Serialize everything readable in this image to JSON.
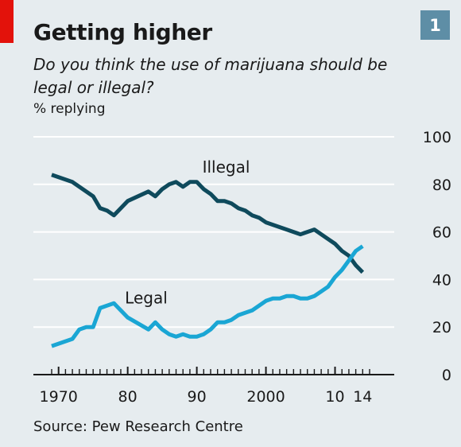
{
  "header": {
    "title": "Getting higher",
    "subtitle": "Do you think the use of marijuana should be legal or illegal?",
    "unit": "% replying",
    "badge": "1"
  },
  "footer": {
    "source": "Source: Pew Research Centre"
  },
  "colors": {
    "illegal": "#0f4a5c",
    "legal": "#1aa6d4",
    "grid": "#ffffff",
    "badge": "#5e8ea6",
    "accent": "#e3120b",
    "background": "#e6ecef"
  },
  "chart_data": {
    "type": "line",
    "title": "Getting higher",
    "subtitle": "Do you think the use of marijuana should be legal or illegal?",
    "ylabel": "% replying",
    "xlim": [
      1969,
      2015
    ],
    "ylim": [
      0,
      100
    ],
    "y_ticks": [
      0,
      20,
      40,
      60,
      80,
      100
    ],
    "x_tick_labels": [
      {
        "x": 1970,
        "label": "1970"
      },
      {
        "x": 1980,
        "label": "80"
      },
      {
        "x": 1990,
        "label": "90"
      },
      {
        "x": 2000,
        "label": "2000"
      },
      {
        "x": 2010,
        "label": "10"
      },
      {
        "x": 2014,
        "label": "14"
      }
    ],
    "grid": true,
    "y_axis_side": "right",
    "series": [
      {
        "name": "Illegal",
        "x": [
          1969,
          1970,
          1972,
          1973,
          1974,
          1975,
          1976,
          1977,
          1978,
          1979,
          1980,
          1983,
          1984,
          1985,
          1986,
          1987,
          1988,
          1989,
          1990,
          1991,
          1992,
          1993,
          1994,
          1995,
          1996,
          1997,
          1998,
          1999,
          2000,
          2001,
          2002,
          2003,
          2004,
          2005,
          2006,
          2007,
          2008,
          2009,
          2010,
          2011,
          2012,
          2013,
          2014
        ],
        "values": [
          84,
          83,
          81,
          79,
          77,
          75,
          70,
          69,
          67,
          70,
          73,
          77,
          75,
          78,
          80,
          81,
          79,
          81,
          81,
          78,
          76,
          73,
          73,
          72,
          70,
          69,
          67,
          66,
          64,
          63,
          62,
          61,
          60,
          59,
          60,
          61,
          59,
          57,
          55,
          52,
          50,
          46,
          43
        ]
      },
      {
        "name": "Legal",
        "x": [
          1969,
          1970,
          1972,
          1973,
          1974,
          1975,
          1976,
          1977,
          1978,
          1979,
          1980,
          1983,
          1984,
          1985,
          1986,
          1987,
          1988,
          1989,
          1990,
          1991,
          1992,
          1993,
          1994,
          1995,
          1996,
          1997,
          1998,
          1999,
          2000,
          2001,
          2002,
          2003,
          2004,
          2005,
          2006,
          2007,
          2008,
          2009,
          2010,
          2011,
          2012,
          2013,
          2014
        ],
        "values": [
          12,
          13,
          15,
          19,
          20,
          20,
          28,
          29,
          30,
          27,
          24,
          19,
          22,
          19,
          17,
          16,
          17,
          16,
          16,
          17,
          19,
          22,
          22,
          23,
          25,
          26,
          27,
          29,
          31,
          32,
          32,
          33,
          33,
          32,
          32,
          33,
          35,
          37,
          41,
          44,
          48,
          52,
          54
        ]
      }
    ],
    "annotations": [
      {
        "text": "Illegal",
        "x": 1990.8,
        "y": 85
      },
      {
        "text": "Legal",
        "x": 1979.6,
        "y": 30
      }
    ]
  }
}
